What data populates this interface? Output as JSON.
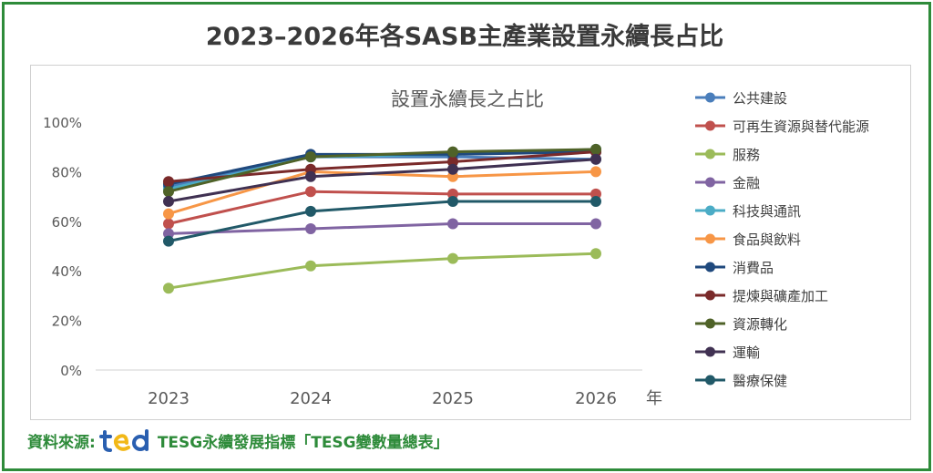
{
  "header": {
    "title": "2023–2026年各SASB主產業設置永續長占比"
  },
  "chart_data": {
    "type": "line",
    "title": "設置永續長之占比",
    "xlabel": "年",
    "ylabel": "",
    "categories": [
      "2023",
      "2024",
      "2025",
      "2026"
    ],
    "ylim": [
      0,
      100
    ],
    "yticks": [
      "0%",
      "20%",
      "40%",
      "60%",
      "80%",
      "100%"
    ],
    "grid": false,
    "legend_position": "right",
    "series": [
      {
        "name": "公共建設",
        "color": "#4a7ebb",
        "values": [
          74,
          86,
          86,
          85
        ]
      },
      {
        "name": "可再生資源與替代能源",
        "color": "#c0504d",
        "values": [
          59,
          72,
          71,
          71
        ]
      },
      {
        "name": "服務",
        "color": "#9bbb59",
        "values": [
          33,
          42,
          45,
          47
        ]
      },
      {
        "name": "金融",
        "color": "#8064a2",
        "values": [
          55,
          57,
          59,
          59
        ]
      },
      {
        "name": "科技與通訊",
        "color": "#4bacc6",
        "values": [
          73,
          86,
          87,
          89
        ]
      },
      {
        "name": "食品與飲料",
        "color": "#f79646",
        "values": [
          63,
          80,
          78,
          80
        ]
      },
      {
        "name": "消費品",
        "color": "#1f497d",
        "values": [
          75,
          87,
          87,
          88
        ]
      },
      {
        "name": "提煉與礦產加工",
        "color": "#7a2a2a",
        "values": [
          76,
          81,
          84,
          88
        ]
      },
      {
        "name": "資源轉化",
        "color": "#4f6228",
        "values": [
          72,
          86,
          88,
          89
        ]
      },
      {
        "name": "運輸",
        "color": "#403152",
        "values": [
          68,
          78,
          81,
          85
        ]
      },
      {
        "name": "醫療保健",
        "color": "#215968",
        "values": [
          52,
          64,
          68,
          68
        ]
      }
    ]
  },
  "footer": {
    "source_label": "資料來源:",
    "source_text": "TESG永續發展指標「TESG變數量總表」",
    "logo_colors": [
      "#2a5fb0",
      "#f2b817"
    ]
  }
}
